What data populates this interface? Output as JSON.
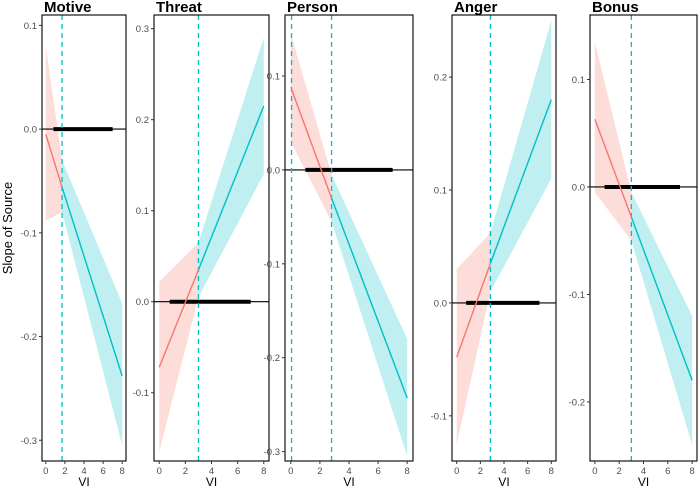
{
  "ylabel": "Slope of Source",
  "colors": {
    "red_line": "#F8766D",
    "red_band": "#F8766D",
    "teal_line": "#00BFC4",
    "teal_band": "#00BFC4",
    "border": "#000000",
    "tick_text": "#4D4D4D"
  },
  "chart_data": [
    {
      "type": "line",
      "title": "Motive",
      "xlabel": "VI",
      "xlim": [
        -0.4,
        8.4
      ],
      "ylim": [
        -0.32,
        0.11
      ],
      "xticks": [
        0,
        2,
        4,
        6,
        8
      ],
      "yticks": [
        0.1,
        0.0,
        -0.1,
        -0.2,
        -0.3
      ],
      "ytick_labels": [
        "0.1",
        "0.0",
        "-0.1",
        "-0.2",
        "-0.3"
      ],
      "vline": 1.7,
      "zero_segment": [
        0.8,
        7.0
      ],
      "red": {
        "x": [
          0,
          1.7
        ],
        "y": [
          -0.005,
          -0.056
        ],
        "lo": [
          -0.088,
          -0.08
        ],
        "hi": [
          0.08,
          -0.03
        ]
      },
      "teal": {
        "x": [
          1.7,
          8
        ],
        "y": [
          -0.056,
          -0.238
        ],
        "lo": [
          -0.08,
          -0.305
        ],
        "hi": [
          -0.03,
          -0.168
        ]
      }
    },
    {
      "type": "line",
      "title": "Threat",
      "xlabel": "VI",
      "xlim": [
        -0.4,
        8.4
      ],
      "ylim": [
        -0.175,
        0.315
      ],
      "xticks": [
        0,
        2,
        4,
        6,
        8
      ],
      "yticks": [
        0.3,
        0.2,
        0.1,
        0.0,
        -0.1
      ],
      "ytick_labels": [
        "0.3",
        "0.2",
        "0.1",
        "0.0",
        "-0.1"
      ],
      "vline": 3.0,
      "zero_segment": [
        0.8,
        7.0
      ],
      "red": {
        "x": [
          0,
          3.0
        ],
        "y": [
          -0.072,
          0.035
        ],
        "lo": [
          -0.165,
          0.005
        ],
        "hi": [
          0.022,
          0.065
        ]
      },
      "teal": {
        "x": [
          3.0,
          8
        ],
        "y": [
          0.035,
          0.215
        ],
        "lo": [
          0.005,
          0.14
        ],
        "hi": [
          0.065,
          0.29
        ]
      }
    },
    {
      "type": "line",
      "title": "Person",
      "xlabel": "VI",
      "xlim": [
        -0.4,
        8.4
      ],
      "ylim": [
        -0.31,
        0.165
      ],
      "xticks": [
        0,
        2,
        4,
        6,
        8
      ],
      "yticks": [
        0.1,
        0.0,
        -0.1,
        -0.2,
        -0.3
      ],
      "ytick_labels": [
        "0.1",
        "0.0",
        "-0.1",
        "-0.2",
        "-0.3"
      ],
      "vline": 2.8,
      "vline2": 0.05,
      "zero_segment": [
        1.0,
        7.0
      ],
      "red": {
        "x": [
          0,
          2.8
        ],
        "y": [
          0.088,
          -0.03
        ],
        "lo": [
          0.03,
          -0.055
        ],
        "hi": [
          0.145,
          -0.005
        ]
      },
      "teal": {
        "x": [
          2.8,
          8
        ],
        "y": [
          -0.03,
          -0.243
        ],
        "lo": [
          -0.055,
          -0.305
        ],
        "hi": [
          -0.005,
          -0.18
        ]
      }
    },
    {
      "type": "line",
      "title": "Anger",
      "xlabel": "VI",
      "xlim": [
        -0.4,
        8.4
      ],
      "ylim": [
        -0.14,
        0.255
      ],
      "xticks": [
        0,
        2,
        4,
        6,
        8
      ],
      "yticks": [
        0.2,
        0.1,
        0.0,
        -0.1
      ],
      "ytick_labels": [
        "0.2",
        "0.1",
        "0.0",
        "-0.1"
      ],
      "vline": 2.85,
      "zero_segment": [
        0.8,
        7.0
      ],
      "red": {
        "x": [
          0,
          2.85
        ],
        "y": [
          -0.048,
          0.035
        ],
        "lo": [
          -0.125,
          0.01
        ],
        "hi": [
          0.03,
          0.062
        ]
      },
      "teal": {
        "x": [
          2.85,
          8
        ],
        "y": [
          0.035,
          0.18
        ],
        "lo": [
          0.01,
          0.11
        ],
        "hi": [
          0.062,
          0.25
        ]
      }
    },
    {
      "type": "line",
      "title": "Bonus",
      "xlabel": "VI",
      "xlim": [
        -0.4,
        8.4
      ],
      "ylim": [
        -0.255,
        0.16
      ],
      "xticks": [
        0,
        2,
        4,
        6,
        8
      ],
      "yticks": [
        0.1,
        0.0,
        -0.1,
        -0.2
      ],
      "ytick_labels": [
        "0.1",
        "0.0",
        "-0.1",
        "-0.2"
      ],
      "vline": 3.0,
      "zero_segment": [
        0.8,
        7.0
      ],
      "red": {
        "x": [
          0,
          3.0
        ],
        "y": [
          0.063,
          -0.028
        ],
        "lo": [
          -0.005,
          -0.05
        ],
        "hi": [
          0.135,
          -0.005
        ]
      },
      "teal": {
        "x": [
          3.0,
          8
        ],
        "y": [
          -0.028,
          -0.18
        ],
        "lo": [
          -0.05,
          -0.24
        ],
        "hi": [
          -0.005,
          -0.12
        ]
      }
    }
  ]
}
